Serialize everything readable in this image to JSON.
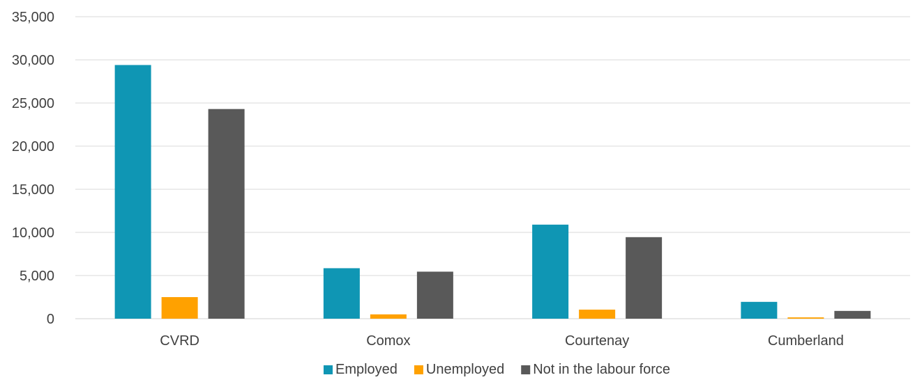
{
  "chart_data": {
    "type": "bar",
    "title": "",
    "xlabel": "",
    "ylabel": "",
    "categories": [
      "CVRD",
      "Comox",
      "Courtenay",
      "Cumberland"
    ],
    "series": [
      {
        "name": "Employed",
        "color": "#0f96b4",
        "values": [
          29400,
          5850,
          10900,
          1950
        ]
      },
      {
        "name": "Unemployed",
        "color": "#ffa100",
        "values": [
          2500,
          500,
          1050,
          150
        ]
      },
      {
        "name": "Not in the labour force",
        "color": "#595959",
        "values": [
          24300,
          5450,
          9450,
          900
        ]
      }
    ],
    "ylim": [
      0,
      35000
    ],
    "yticks": [
      0,
      5000,
      10000,
      15000,
      20000,
      25000,
      30000,
      35000
    ],
    "ytick_labels": [
      "0",
      "5,000",
      "10,000",
      "15,000",
      "20,000",
      "25,000",
      "30,000",
      "35,000"
    ],
    "grid": true,
    "legend_position": "bottom"
  }
}
